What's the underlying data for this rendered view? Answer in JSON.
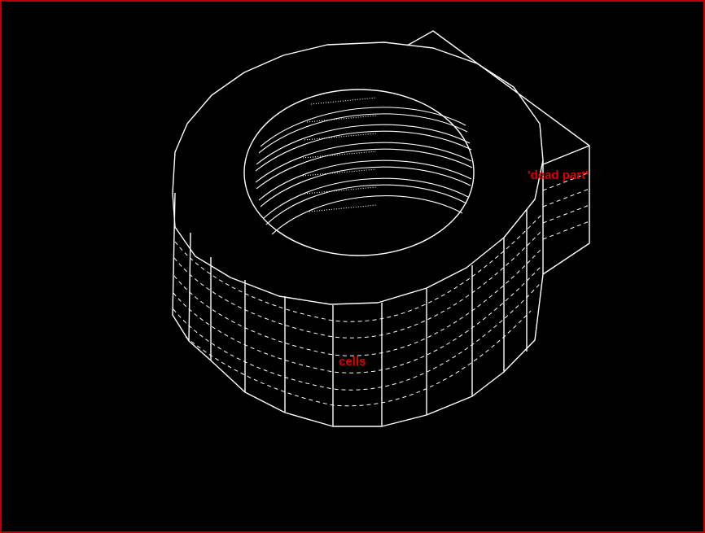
{
  "labels": {
    "dead_part": "'dead part'",
    "cells": "cells"
  },
  "colors": {
    "background": "#000000",
    "lines": "#ffffff",
    "label": "#e00000",
    "border": "#c00000"
  }
}
